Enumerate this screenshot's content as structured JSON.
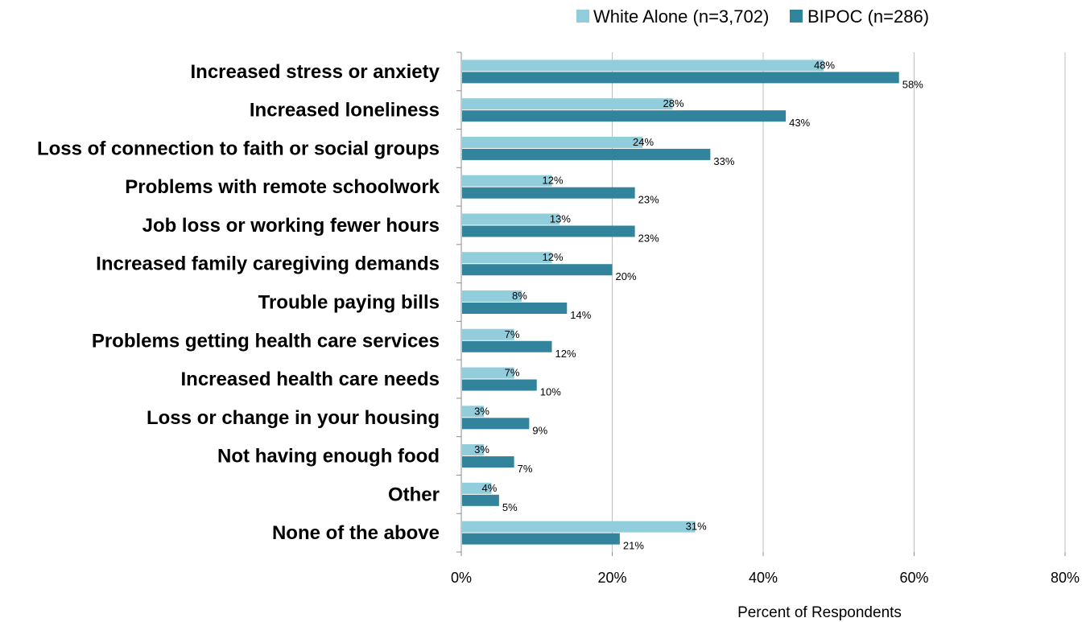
{
  "chart_data": {
    "type": "bar",
    "orientation": "horizontal",
    "categories": [
      "Increased stress or anxiety",
      "Increased loneliness",
      "Loss of connection to faith or social groups",
      "Problems with remote schoolwork",
      "Job loss or working fewer hours",
      "Increased family caregiving demands",
      "Trouble paying bills",
      "Problems getting health care services",
      "Increased health care needs",
      "Loss or change in your housing",
      "Not having enough food",
      "Other",
      "None of the above"
    ],
    "series": [
      {
        "name": "White Alone (n=3,702)",
        "color": "#92CDDC",
        "values": [
          48,
          28,
          24,
          12,
          13,
          12,
          8,
          7,
          7,
          3,
          3,
          4,
          31
        ],
        "labels": [
          "48%",
          "28%",
          "24%",
          "12%",
          "13%",
          "12%",
          "8%",
          "7%",
          "7%",
          "3%",
          "3%",
          "4%",
          "31%"
        ]
      },
      {
        "name": "BIPOC (n=286)",
        "color": "#31849B",
        "values": [
          58,
          43,
          33,
          23,
          23,
          20,
          14,
          12,
          10,
          9,
          7,
          5,
          21
        ],
        "labels": [
          "58%",
          "43%",
          "33%",
          "23%",
          "23%",
          "20%",
          "14%",
          "12%",
          "10%",
          "9%",
          "7%",
          "5%",
          "21%"
        ]
      }
    ],
    "title": "",
    "xlabel": "Percent of Respondents",
    "ylabel": "",
    "xlim": [
      0,
      80
    ],
    "xticks": [
      0,
      20,
      40,
      60,
      80
    ],
    "xtick_labels": [
      "0%",
      "20%",
      "40%",
      "60%",
      "80%"
    ],
    "grid": "vertical",
    "gridline_color": "#BFBFBF",
    "legend_position": "top-right"
  }
}
